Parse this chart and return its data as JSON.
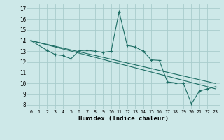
{
  "xlabel": "Humidex (Indice chaleur)",
  "bg_color": "#cde8e8",
  "line_color": "#1e6e65",
  "grid_color": "#a8cccc",
  "xlim": [
    -0.5,
    23.5
  ],
  "ylim": [
    7.6,
    17.4
  ],
  "yticks": [
    8,
    9,
    10,
    11,
    12,
    13,
    14,
    15,
    16,
    17
  ],
  "xticks": [
    0,
    1,
    2,
    3,
    4,
    5,
    6,
    7,
    8,
    9,
    10,
    11,
    12,
    13,
    14,
    15,
    16,
    17,
    18,
    19,
    20,
    21,
    22,
    23
  ],
  "series_main": {
    "x": [
      0,
      2,
      3,
      4,
      5,
      6,
      7,
      8,
      9,
      10,
      11,
      12,
      13,
      14,
      15,
      16,
      17,
      18,
      19,
      20,
      21,
      22,
      23
    ],
    "y": [
      14.0,
      13.1,
      12.7,
      12.6,
      12.3,
      13.05,
      13.1,
      13.0,
      12.9,
      13.0,
      16.7,
      13.55,
      13.4,
      13.0,
      12.2,
      12.15,
      10.15,
      10.05,
      10.0,
      8.1,
      9.3,
      9.5,
      9.7
    ]
  },
  "series_trend1": {
    "x": [
      0,
      23
    ],
    "y": [
      14.0,
      10.0
    ]
  },
  "series_trend2": {
    "x": [
      0,
      23
    ],
    "y": [
      14.0,
      9.5
    ]
  }
}
